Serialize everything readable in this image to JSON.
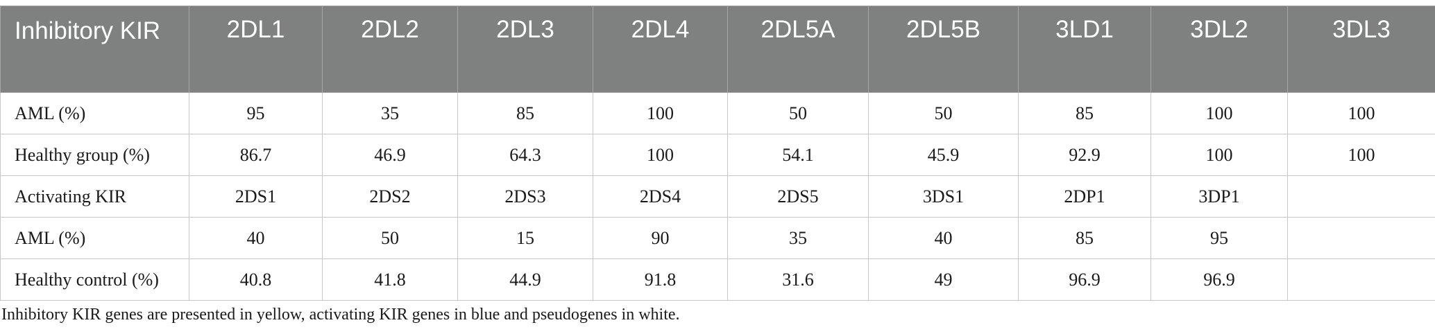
{
  "table": {
    "header": [
      "Inhibitory KIR",
      "2DL1",
      "2DL2",
      "2DL3",
      "2DL4",
      "2DL5A",
      "2DL5B",
      "3LD1",
      "3DL2",
      "3DL3"
    ],
    "rows": [
      [
        "AML (%)",
        "95",
        "35",
        "85",
        "100",
        "50",
        "50",
        "85",
        "100",
        "100"
      ],
      [
        "Healthy group (%)",
        "86.7",
        "46.9",
        "64.3",
        "100",
        "54.1",
        "45.9",
        "92.9",
        "100",
        "100"
      ],
      [
        "Activating KIR",
        "2DS1",
        "2DS2",
        "2DS3",
        "2DS4",
        "2DS5",
        "3DS1",
        "2DP1",
        "3DP1",
        ""
      ],
      [
        "AML (%)",
        "40",
        "50",
        "15",
        "90",
        "35",
        "40",
        "85",
        "95",
        ""
      ],
      [
        "Healthy control (%)",
        "40.8",
        "41.8",
        "44.9",
        "91.8",
        "31.6",
        "49",
        "96.9",
        "96.9",
        ""
      ]
    ]
  },
  "footnote": "Inhibitory KIR genes are presented in yellow, activating KIR genes in blue and pseudogenes in white.",
  "colors": {
    "header_bg": "#7f8180",
    "header_text": "#ffffff",
    "grid": "#c8c8c8"
  }
}
